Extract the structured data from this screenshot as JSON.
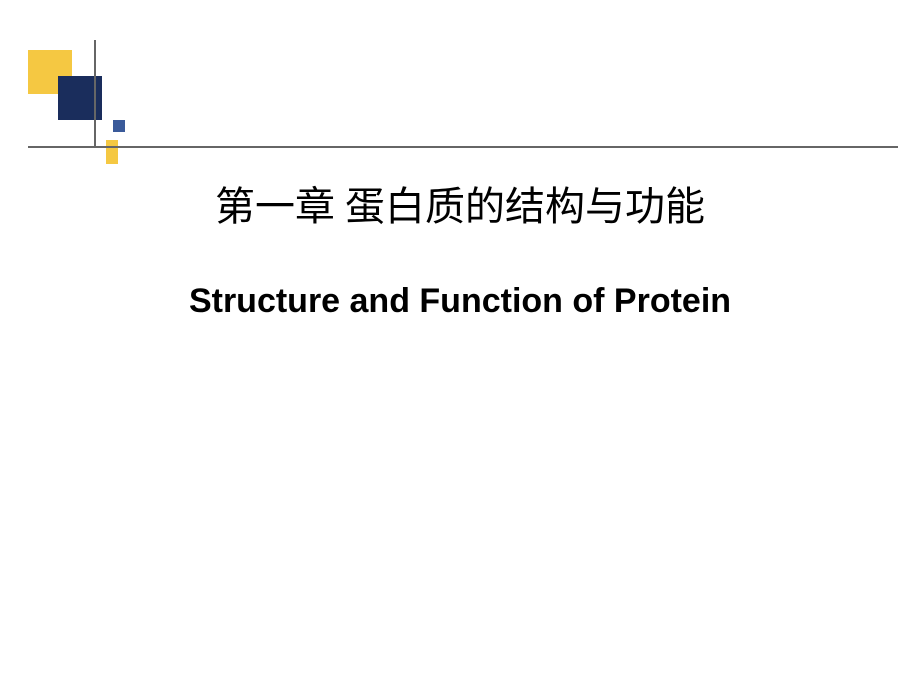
{
  "slide": {
    "title_cn": "第一章  蛋白质的结构与功能",
    "title_en": "Structure and Function of Protein"
  },
  "decoration": {
    "yellow_square_color": "#f5c842",
    "blue_square_color": "#1a2d5c",
    "small_blue_color": "#3a5a9a",
    "small_yellow_color": "#f5c842",
    "line_color": "#666666"
  },
  "style": {
    "background_color": "#ffffff",
    "title_cn_fontsize": 40,
    "title_en_fontsize": 34,
    "title_color": "#000000"
  }
}
